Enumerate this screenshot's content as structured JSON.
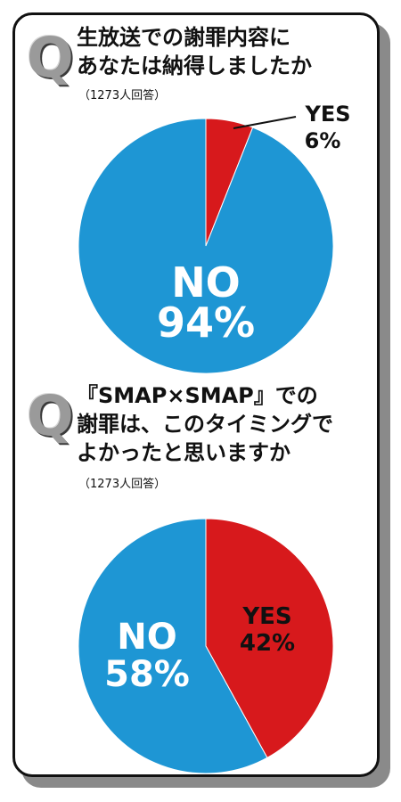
{
  "chart_data": [
    {
      "type": "pie",
      "question_mark": "Q",
      "title_lines": [
        "生放送での謝罪内容に",
        "あなたは納得しましたか"
      ],
      "respondents": "（1273人回答）",
      "slices": [
        {
          "label": "YES",
          "value": 6,
          "value_text": "6%",
          "color": "#d7191c"
        },
        {
          "label": "NO",
          "value": 94,
          "value_text": "94%",
          "color": "#1e96d4"
        }
      ]
    },
    {
      "type": "pie",
      "question_mark": "Q",
      "title_lines": [
        "『SMAP×SMAP』での",
        "謝罪は、このタイミングで",
        "よかったと思いますか"
      ],
      "respondents": "（1273人回答）",
      "slices": [
        {
          "label": "YES",
          "value": 42,
          "value_text": "42%",
          "color": "#d7191c"
        },
        {
          "label": "NO",
          "value": 58,
          "value_text": "58%",
          "color": "#1e96d4"
        }
      ]
    }
  ]
}
